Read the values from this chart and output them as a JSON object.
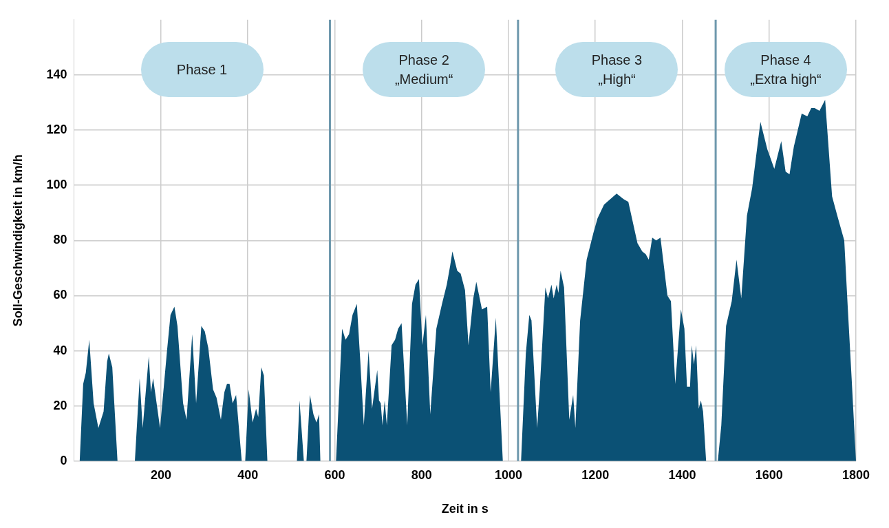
{
  "chart_data": {
    "type": "area",
    "xlabel": "Zeit in s",
    "ylabel": "Soll-Geschwindigkeit in km/h",
    "xlim": [
      0,
      1800
    ],
    "ylim": [
      0,
      160
    ],
    "xticks": [
      200,
      400,
      600,
      800,
      1000,
      1200,
      1400,
      1600,
      1800
    ],
    "yticks": [
      0,
      20,
      40,
      60,
      80,
      100,
      120,
      140
    ],
    "grid": true,
    "series": [
      {
        "color": "#0b5175",
        "x": [
          0,
          13,
          21,
          27,
          35,
          45,
          56,
          68,
          76,
          80,
          88,
          100,
          140,
          151,
          158,
          172,
          177,
          182,
          198,
          214,
          222,
          231,
          238,
          251,
          259,
          272,
          281,
          293,
          301,
          309,
          320,
          328,
          338,
          346,
          352,
          358,
          365,
          373,
          386,
          394,
          402,
          411,
          419,
          424,
          431,
          437,
          445,
          513,
          519,
          529,
          535,
          543,
          551,
          558,
          564,
          567,
          589,
          603,
          617,
          625,
          633,
          641,
          651,
          659,
          667,
          678,
          686,
          698,
          702,
          706,
          710,
          715,
          720,
          731,
          739,
          746,
          754,
          767,
          778,
          786,
          794,
          802,
          810,
          820,
          834,
          847,
          858,
          866,
          871,
          882,
          890,
          900,
          908,
          919,
          926,
          939,
          951,
          959,
          971,
          987,
          1029,
          1040,
          1048,
          1053,
          1066,
          1072,
          1085,
          1091,
          1099,
          1104,
          1111,
          1115,
          1120,
          1128,
          1140,
          1149,
          1154,
          1165,
          1180,
          1196,
          1205,
          1220,
          1249,
          1265,
          1276,
          1297,
          1308,
          1316,
          1323,
          1331,
          1340,
          1350,
          1366,
          1374,
          1384,
          1397,
          1405,
          1411,
          1418,
          1422,
          1427,
          1432,
          1438,
          1443,
          1448,
          1455,
          1482,
          1490,
          1501,
          1514,
          1525,
          1536,
          1549,
          1561,
          1580,
          1596,
          1612,
          1628,
          1638,
          1647,
          1657,
          1675,
          1688,
          1697,
          1705,
          1716,
          1729,
          1745,
          1757,
          1773,
          1781,
          1790,
          1800
        ],
        "values": [
          0,
          0,
          28,
          32,
          44,
          21,
          12,
          18,
          36,
          39,
          34,
          0,
          0,
          30,
          12,
          38,
          25,
          30,
          12,
          40,
          53,
          56,
          49,
          21,
          15,
          46,
          21,
          49,
          47,
          41,
          26,
          23,
          15,
          25,
          28,
          28,
          21,
          24,
          0,
          0,
          26,
          14,
          19,
          16,
          34,
          31,
          0,
          0,
          22,
          0,
          0,
          24,
          17,
          14,
          17,
          0,
          0,
          0,
          48,
          44,
          46,
          53,
          57,
          36,
          13,
          40,
          19,
          33,
          22,
          21,
          13,
          22,
          13,
          42,
          44,
          48,
          50,
          13,
          57,
          64,
          66,
          42,
          53,
          17,
          48,
          57,
          64,
          71,
          76,
          69,
          68,
          62,
          42,
          59,
          65,
          55,
          56,
          25,
          52,
          0,
          0,
          39,
          53,
          51,
          12,
          26,
          63,
          59,
          64,
          59,
          64,
          61,
          69,
          63,
          15,
          24,
          12,
          51,
          73,
          83,
          88,
          93,
          97,
          95,
          94,
          79,
          76,
          75,
          73,
          81,
          80,
          81,
          60,
          58,
          28,
          55,
          48,
          27,
          27,
          42,
          35,
          42,
          19,
          22,
          18,
          0,
          0,
          13,
          49,
          58,
          73,
          59,
          89,
          99,
          123,
          113,
          106,
          116,
          105,
          104,
          114,
          126,
          125,
          128,
          128,
          127,
          131,
          96,
          89,
          80,
          56,
          30,
          0
        ]
      }
    ],
    "ref_lines": [
      {
        "axis": "x",
        "value": 589,
        "color": "#6e98ad"
      },
      {
        "axis": "x",
        "value": 1022,
        "color": "#6e98ad"
      },
      {
        "axis": "x",
        "value": 1477,
        "color": "#6e98ad"
      }
    ],
    "annotations": [
      "Phase 1",
      "Phase 2\n„Medium“",
      "Phase 3\n„High“",
      "Phase 4\n„Extra high“"
    ]
  }
}
